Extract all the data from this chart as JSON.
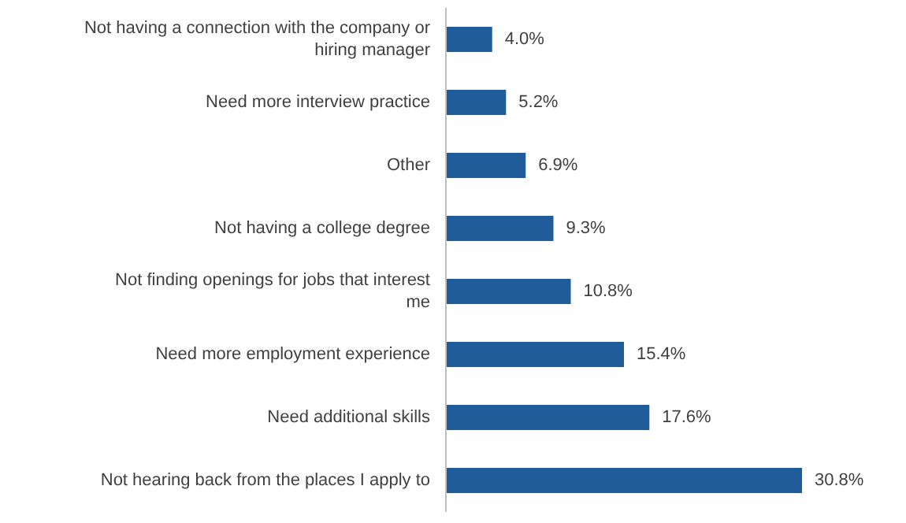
{
  "chart_data": {
    "type": "bar",
    "orientation": "horizontal",
    "categories": [
      "Not having a connection with the company or hiring manager",
      "Need more interview practice",
      "Other",
      "Not having a college degree",
      "Not finding openings for jobs that interest me",
      "Need more employment experience",
      "Need additional skills",
      "Not hearing back from the places I apply to"
    ],
    "values": [
      4.0,
      5.2,
      6.9,
      9.3,
      10.8,
      15.4,
      17.6,
      30.8
    ],
    "value_labels": [
      "4.0%",
      "5.2%",
      "6.9%",
      "9.3%",
      "10.8%",
      "15.4%",
      "17.6%",
      "30.8%"
    ],
    "color": "#1f5c99"
  }
}
